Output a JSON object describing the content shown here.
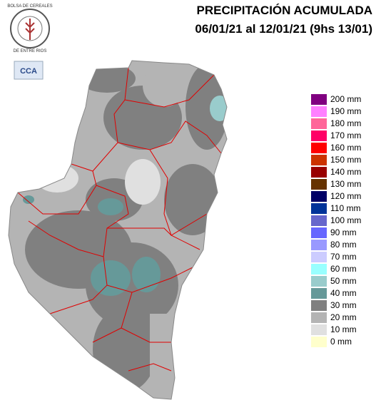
{
  "header": {
    "title": "PRECIPITACIÓN ACUMULADA",
    "subtitle": "06/01/21 al 12/01/21 (9hs 13/01)"
  },
  "logo": {
    "top_text": "BOLSA DE CEREALES",
    "bottom_text": "DE ENTRE RIOS",
    "badge": "CCA"
  },
  "legend": [
    {
      "label": "200 mm",
      "color": "#800080"
    },
    {
      "label": "190 mm",
      "color": "#ff80ff"
    },
    {
      "label": "180 mm",
      "color": "#ff6699"
    },
    {
      "label": "170 mm",
      "color": "#ff0066"
    },
    {
      "label": "160 mm",
      "color": "#ff0000"
    },
    {
      "label": "150 mm",
      "color": "#cc3300"
    },
    {
      "label": "140 mm",
      "color": "#990000"
    },
    {
      "label": "130 mm",
      "color": "#663300"
    },
    {
      "label": "120 mm",
      "color": "#000066"
    },
    {
      "label": "110 mm",
      "color": "#003399"
    },
    {
      "label": "100 mm",
      "color": "#6666cc"
    },
    {
      "label": "90 mm",
      "color": "#6666ff"
    },
    {
      "label": "80 mm",
      "color": "#9999ff"
    },
    {
      "label": "70 mm",
      "color": "#ccccff"
    },
    {
      "label": "60 mm",
      "color": "#99ffff"
    },
    {
      "label": "50 mm",
      "color": "#99cccc"
    },
    {
      "label": "40 mm",
      "color": "#669999"
    },
    {
      "label": "30 mm",
      "color": "#808080"
    },
    {
      "label": "20 mm",
      "color": "#b4b4b4"
    },
    {
      "label": "10 mm",
      "color": "#e0e0e0"
    },
    {
      "label": "0 mm",
      "color": "#ffffcc"
    }
  ]
}
